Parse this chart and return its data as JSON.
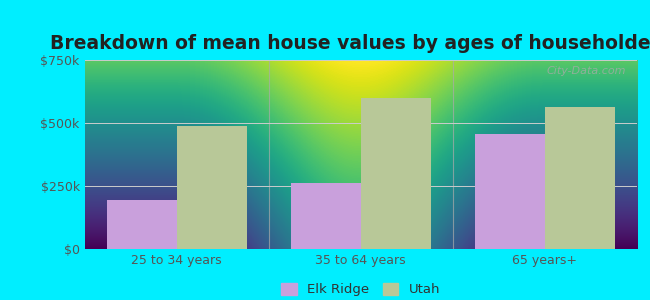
{
  "title": "Breakdown of mean house values by ages of householders",
  "categories": [
    "25 to 34 years",
    "35 to 64 years",
    "65 years+"
  ],
  "elk_ridge_values": [
    195000,
    262000,
    455000
  ],
  "utah_values": [
    490000,
    600000,
    565000
  ],
  "elk_ridge_color": "#c9a0dc",
  "utah_color": "#b8c898",
  "background_color": "#00eeff",
  "plot_bg_top": "#d8eed8",
  "plot_bg_bottom": "#f5fff5",
  "ylim": [
    0,
    750000
  ],
  "yticks": [
    0,
    250000,
    500000,
    750000
  ],
  "ytick_labels": [
    "$0",
    "$250k",
    "$500k",
    "$750k"
  ],
  "legend_labels": [
    "Elk Ridge",
    "Utah"
  ],
  "bar_width": 0.38,
  "title_fontsize": 13.5,
  "tick_fontsize": 9,
  "legend_fontsize": 9.5,
  "watermark": "City-Data.com"
}
